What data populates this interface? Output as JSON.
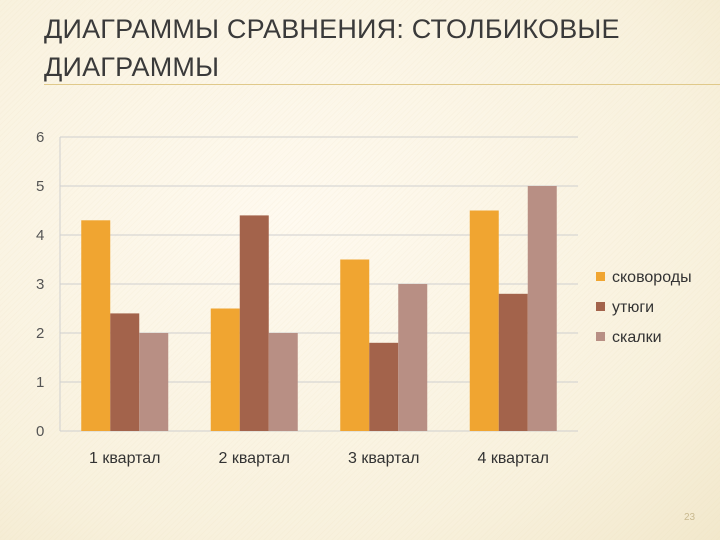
{
  "slide": {
    "title": "ДИАГРАММЫ СРАВНЕНИЯ: СТОЛБИКОВЫЕ ДИАГРАММЫ",
    "page_number": "23"
  },
  "colors": {
    "series": [
      "#f0a531",
      "#a3634b",
      "#b88f84"
    ],
    "grid": "#cfcfcf"
  },
  "chart_data": {
    "type": "bar",
    "categories": [
      "1 квартал",
      "2 квартал",
      "3 квартал",
      "4 квартал"
    ],
    "series": [
      {
        "name": "сковороды",
        "values": [
          4.3,
          2.5,
          3.5,
          4.5
        ]
      },
      {
        "name": "утюги",
        "values": [
          2.4,
          4.4,
          1.8,
          2.8
        ]
      },
      {
        "name": "скалки",
        "values": [
          2.0,
          2.0,
          3.0,
          5.0
        ]
      }
    ],
    "title": "",
    "xlabel": "",
    "ylabel": "",
    "ylim": [
      0,
      6
    ],
    "yticks": [
      0,
      1,
      2,
      3,
      4,
      5,
      6
    ],
    "grid": true,
    "legend_position": "right"
  }
}
